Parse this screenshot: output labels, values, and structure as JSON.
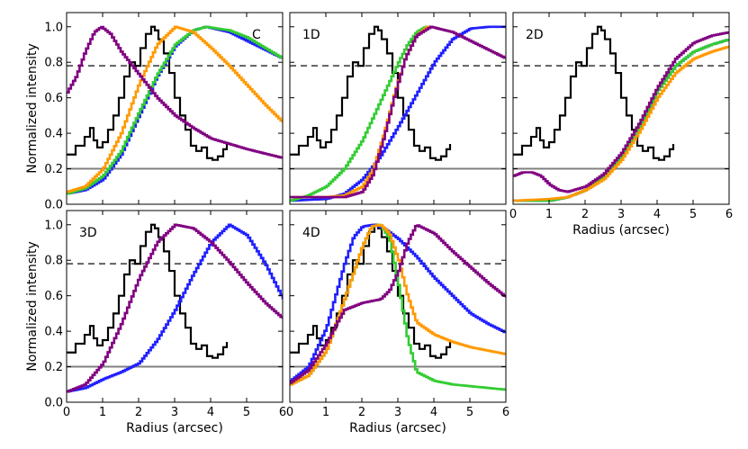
{
  "chart_data": {
    "type": "line",
    "shared": {
      "xlim": [
        0,
        6
      ],
      "ylim": [
        0,
        1.08
      ],
      "xticks": [
        "0",
        "1",
        "2",
        "3",
        "4",
        "5",
        "6"
      ],
      "yticks": [
        "0.0",
        "0.2",
        "0.4",
        "0.6",
        "0.8",
        "1.0"
      ],
      "xlabel": "Radius (arcsec)",
      "ylabel": "Normalized intensity",
      "hline_solid": 0.2,
      "hline_dashed": 0.78
    },
    "colors": {
      "observed": "#000000",
      "blue": "#1f1fff",
      "green": "#33cc33",
      "orange": "#ff9900",
      "purple": "#800080",
      "solid_ref": "#808080",
      "dashed_ref": "#606060"
    },
    "observed": {
      "x": [
        0,
        0.25,
        0.5,
        0.65,
        0.75,
        0.85,
        1.0,
        1.15,
        1.3,
        1.45,
        1.6,
        1.75,
        1.9,
        2.05,
        2.2,
        2.35,
        2.45,
        2.55,
        2.7,
        2.85,
        3.0,
        3.15,
        3.3,
        3.45,
        3.6,
        3.75,
        3.9,
        4.05,
        4.2,
        4.35,
        4.45
      ],
      "y": [
        0.28,
        0.33,
        0.38,
        0.43,
        0.36,
        0.32,
        0.35,
        0.42,
        0.5,
        0.6,
        0.72,
        0.8,
        0.78,
        0.88,
        0.96,
        1.0,
        0.98,
        0.93,
        0.85,
        0.74,
        0.6,
        0.5,
        0.42,
        0.33,
        0.3,
        0.32,
        0.26,
        0.25,
        0.27,
        0.31,
        0.34
      ]
    },
    "panels": [
      {
        "label": "C",
        "series": [
          {
            "name": "blue",
            "x": [
              0,
              0.5,
              1,
              1.5,
              2,
              2.5,
              3,
              3.5,
              3.85,
              4.5,
              5,
              5.5,
              6
            ],
            "y": [
              0.06,
              0.08,
              0.14,
              0.28,
              0.5,
              0.72,
              0.89,
              0.98,
              1.0,
              0.97,
              0.92,
              0.87,
              0.82
            ]
          },
          {
            "name": "green",
            "x": [
              0,
              0.5,
              1,
              1.5,
              2,
              2.5,
              3,
              3.5,
              3.85,
              4.5,
              5,
              5.5,
              6
            ],
            "y": [
              0.06,
              0.09,
              0.16,
              0.3,
              0.52,
              0.73,
              0.9,
              0.98,
              1.0,
              0.98,
              0.94,
              0.88,
              0.82
            ]
          },
          {
            "name": "orange",
            "x": [
              0,
              0.5,
              1,
              1.5,
              2,
              2.5,
              3,
              3.5,
              4,
              4.5,
              5,
              5.5,
              6
            ],
            "y": [
              0.07,
              0.1,
              0.2,
              0.4,
              0.68,
              0.9,
              1.0,
              0.97,
              0.88,
              0.78,
              0.67,
              0.56,
              0.46
            ]
          },
          {
            "name": "purple",
            "x": [
              0,
              0.25,
              0.5,
              0.75,
              0.95,
              1.2,
              1.5,
              2,
              2.5,
              3,
              3.5,
              4,
              5,
              6
            ],
            "y": [
              0.63,
              0.72,
              0.86,
              0.97,
              1.0,
              0.96,
              0.86,
              0.73,
              0.6,
              0.5,
              0.43,
              0.37,
              0.31,
              0.26
            ]
          }
        ]
      },
      {
        "label": "1D",
        "series": [
          {
            "name": "blue",
            "x": [
              0,
              1,
              1.5,
              2,
              2.5,
              3,
              3.5,
              4,
              4.5,
              5,
              5.5,
              6
            ],
            "y": [
              0.02,
              0.03,
              0.06,
              0.14,
              0.27,
              0.44,
              0.62,
              0.8,
              0.93,
              0.99,
              1.0,
              1.0
            ]
          },
          {
            "name": "green",
            "x": [
              0,
              0.5,
              1,
              1.5,
              2,
              2.5,
              3,
              3.25,
              3.5,
              3.75,
              4
            ],
            "y": [
              0.02,
              0.05,
              0.1,
              0.2,
              0.36,
              0.58,
              0.8,
              0.9,
              0.97,
              1.0,
              1.0
            ]
          },
          {
            "name": "orange",
            "x": [
              0,
              1,
              1.5,
              2,
              2.3,
              2.6,
              2.9,
              3.2,
              3.5,
              3.8,
              4
            ],
            "y": [
              0.04,
              0.04,
              0.05,
              0.1,
              0.2,
              0.4,
              0.63,
              0.83,
              0.95,
              1.0,
              1.0
            ]
          },
          {
            "name": "purple",
            "x": [
              0,
              1,
              1.5,
              2,
              2.3,
              2.6,
              2.9,
              3.2,
              3.5,
              3.9,
              4.5,
              5,
              5.5,
              6
            ],
            "y": [
              0.04,
              0.04,
              0.04,
              0.07,
              0.17,
              0.38,
              0.62,
              0.83,
              0.95,
              1.0,
              0.97,
              0.92,
              0.87,
              0.82
            ]
          }
        ]
      },
      {
        "label": "2D",
        "series": [
          {
            "name": "blue",
            "x": [
              0,
              1,
              1.5,
              2,
              2.5,
              3,
              3.5,
              4,
              4.5,
              5,
              5.5,
              6
            ],
            "y": [
              0.02,
              0.02,
              0.04,
              0.08,
              0.15,
              0.27,
              0.44,
              0.64,
              0.78,
              0.86,
              0.9,
              0.93
            ]
          },
          {
            "name": "green",
            "x": [
              0,
              1,
              1.5,
              2,
              2.5,
              3,
              3.5,
              4,
              4.5,
              5,
              5.5,
              6
            ],
            "y": [
              0.02,
              0.02,
              0.04,
              0.08,
              0.15,
              0.27,
              0.44,
              0.64,
              0.78,
              0.86,
              0.9,
              0.93
            ]
          },
          {
            "name": "orange",
            "x": [
              0,
              1,
              1.5,
              2,
              2.5,
              3,
              3.5,
              4,
              4.5,
              5,
              5.5,
              6
            ],
            "y": [
              0.02,
              0.03,
              0.04,
              0.08,
              0.14,
              0.25,
              0.41,
              0.6,
              0.74,
              0.82,
              0.86,
              0.89
            ]
          },
          {
            "name": "purple",
            "x": [
              0,
              0.25,
              0.5,
              0.75,
              1,
              1.25,
              1.5,
              2,
              2.5,
              3,
              3.5,
              4,
              4.5,
              5,
              5.5,
              6
            ],
            "y": [
              0.16,
              0.18,
              0.18,
              0.16,
              0.11,
              0.08,
              0.07,
              0.1,
              0.17,
              0.29,
              0.46,
              0.66,
              0.82,
              0.91,
              0.95,
              0.97
            ]
          }
        ]
      },
      {
        "label": "3D",
        "series": [
          {
            "name": "blue",
            "x": [
              0,
              0.5,
              1,
              1.5,
              2,
              2.5,
              3,
              3.5,
              4,
              4.5,
              5,
              5.5,
              6
            ],
            "y": [
              0.06,
              0.08,
              0.13,
              0.17,
              0.22,
              0.35,
              0.52,
              0.72,
              0.9,
              1.0,
              0.94,
              0.78,
              0.58
            ]
          },
          {
            "name": "purple",
            "x": [
              0,
              0.5,
              1,
              1.5,
              2,
              2.5,
              3,
              3.5,
              4,
              4.5,
              5,
              5.5,
              6
            ],
            "y": [
              0.06,
              0.1,
              0.22,
              0.44,
              0.7,
              0.9,
              1.0,
              0.98,
              0.9,
              0.79,
              0.67,
              0.56,
              0.47
            ]
          }
        ]
      },
      {
        "label": "4D",
        "series": [
          {
            "name": "blue",
            "x": [
              0,
              0.5,
              1,
              1.5,
              1.75,
              2,
              2.3,
              2.6,
              3,
              3.5,
              4,
              4.5,
              5,
              5.5,
              6
            ],
            "y": [
              0.12,
              0.2,
              0.42,
              0.78,
              0.93,
              0.99,
              1.0,
              0.98,
              0.92,
              0.82,
              0.7,
              0.6,
              0.5,
              0.44,
              0.39
            ]
          },
          {
            "name": "green",
            "x": [
              0,
              0.5,
              1,
              1.5,
              2,
              2.25,
              2.5,
              2.75,
              3,
              3.25,
              3.5,
              4,
              4.5,
              5,
              5.5,
              6
            ],
            "y": [
              0.1,
              0.15,
              0.29,
              0.58,
              0.88,
              0.99,
              1.0,
              0.92,
              0.66,
              0.36,
              0.17,
              0.12,
              0.1,
              0.09,
              0.08,
              0.07
            ]
          },
          {
            "name": "orange",
            "x": [
              0,
              0.5,
              1,
              1.5,
              2,
              2.25,
              2.5,
              2.75,
              3,
              3.25,
              3.5,
              4,
              4.5,
              5,
              5.5,
              6
            ],
            "y": [
              0.1,
              0.15,
              0.29,
              0.58,
              0.88,
              0.99,
              1.0,
              0.95,
              0.8,
              0.6,
              0.45,
              0.38,
              0.34,
              0.31,
              0.29,
              0.27
            ]
          },
          {
            "name": "purple",
            "x": [
              0,
              0.5,
              1,
              1.25,
              1.5,
              2,
              2.5,
              2.75,
              3,
              3.25,
              3.5,
              4,
              4.5,
              5,
              5.5,
              6
            ],
            "y": [
              0.11,
              0.18,
              0.33,
              0.43,
              0.52,
              0.56,
              0.58,
              0.63,
              0.74,
              0.9,
              1.0,
              0.95,
              0.85,
              0.76,
              0.67,
              0.59
            ]
          }
        ]
      }
    ]
  }
}
